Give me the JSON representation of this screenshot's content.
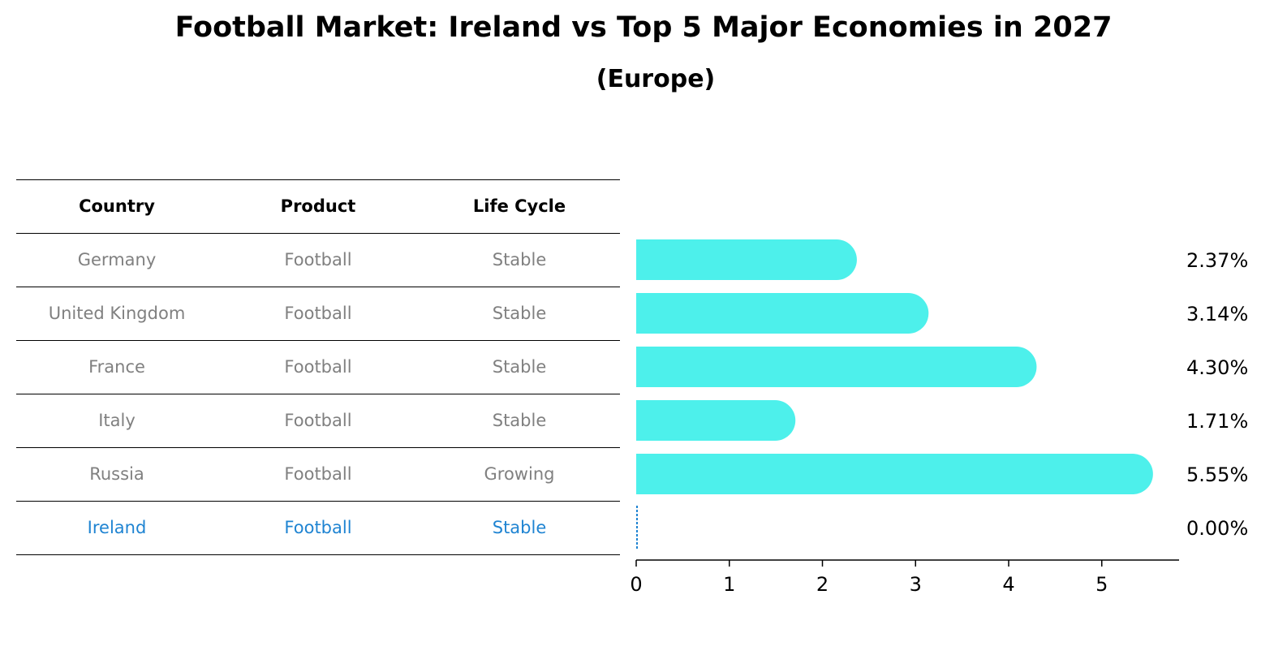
{
  "title": "Football Market: Ireland vs Top 5 Major Economies in 2027",
  "subtitle": "(Europe)",
  "table": {
    "headers": [
      "Country",
      "Product",
      "Life Cycle"
    ],
    "rows": [
      {
        "country": "Germany",
        "product": "Football",
        "life_cycle": "Stable",
        "highlight": false
      },
      {
        "country": "United Kingdom",
        "product": "Football",
        "life_cycle": "Stable",
        "highlight": false
      },
      {
        "country": "France",
        "product": "Football",
        "life_cycle": "Stable",
        "highlight": false
      },
      {
        "country": "Italy",
        "product": "Football",
        "life_cycle": "Stable",
        "highlight": false
      },
      {
        "country": "Russia",
        "product": "Football",
        "life_cycle": "Growing",
        "highlight": false
      },
      {
        "country": "Ireland",
        "product": "Football",
        "life_cycle": "Stable",
        "highlight": true
      }
    ]
  },
  "colors": {
    "bar": "#4df0eb",
    "highlight": "#1f84d2",
    "muted_text": "#808080"
  },
  "chart_data": {
    "type": "bar",
    "orientation": "horizontal",
    "categories": [
      "Germany",
      "United Kingdom",
      "France",
      "Italy",
      "Russia",
      "Ireland"
    ],
    "values": [
      2.37,
      3.14,
      4.3,
      1.71,
      5.55,
      0.0
    ],
    "value_labels": [
      "2.37%",
      "3.14%",
      "4.30%",
      "1.71%",
      "5.55%",
      "0.00%"
    ],
    "xlim": [
      0,
      5.83
    ],
    "xticks": [
      0,
      1,
      2,
      3,
      4,
      5
    ],
    "grid": false
  }
}
